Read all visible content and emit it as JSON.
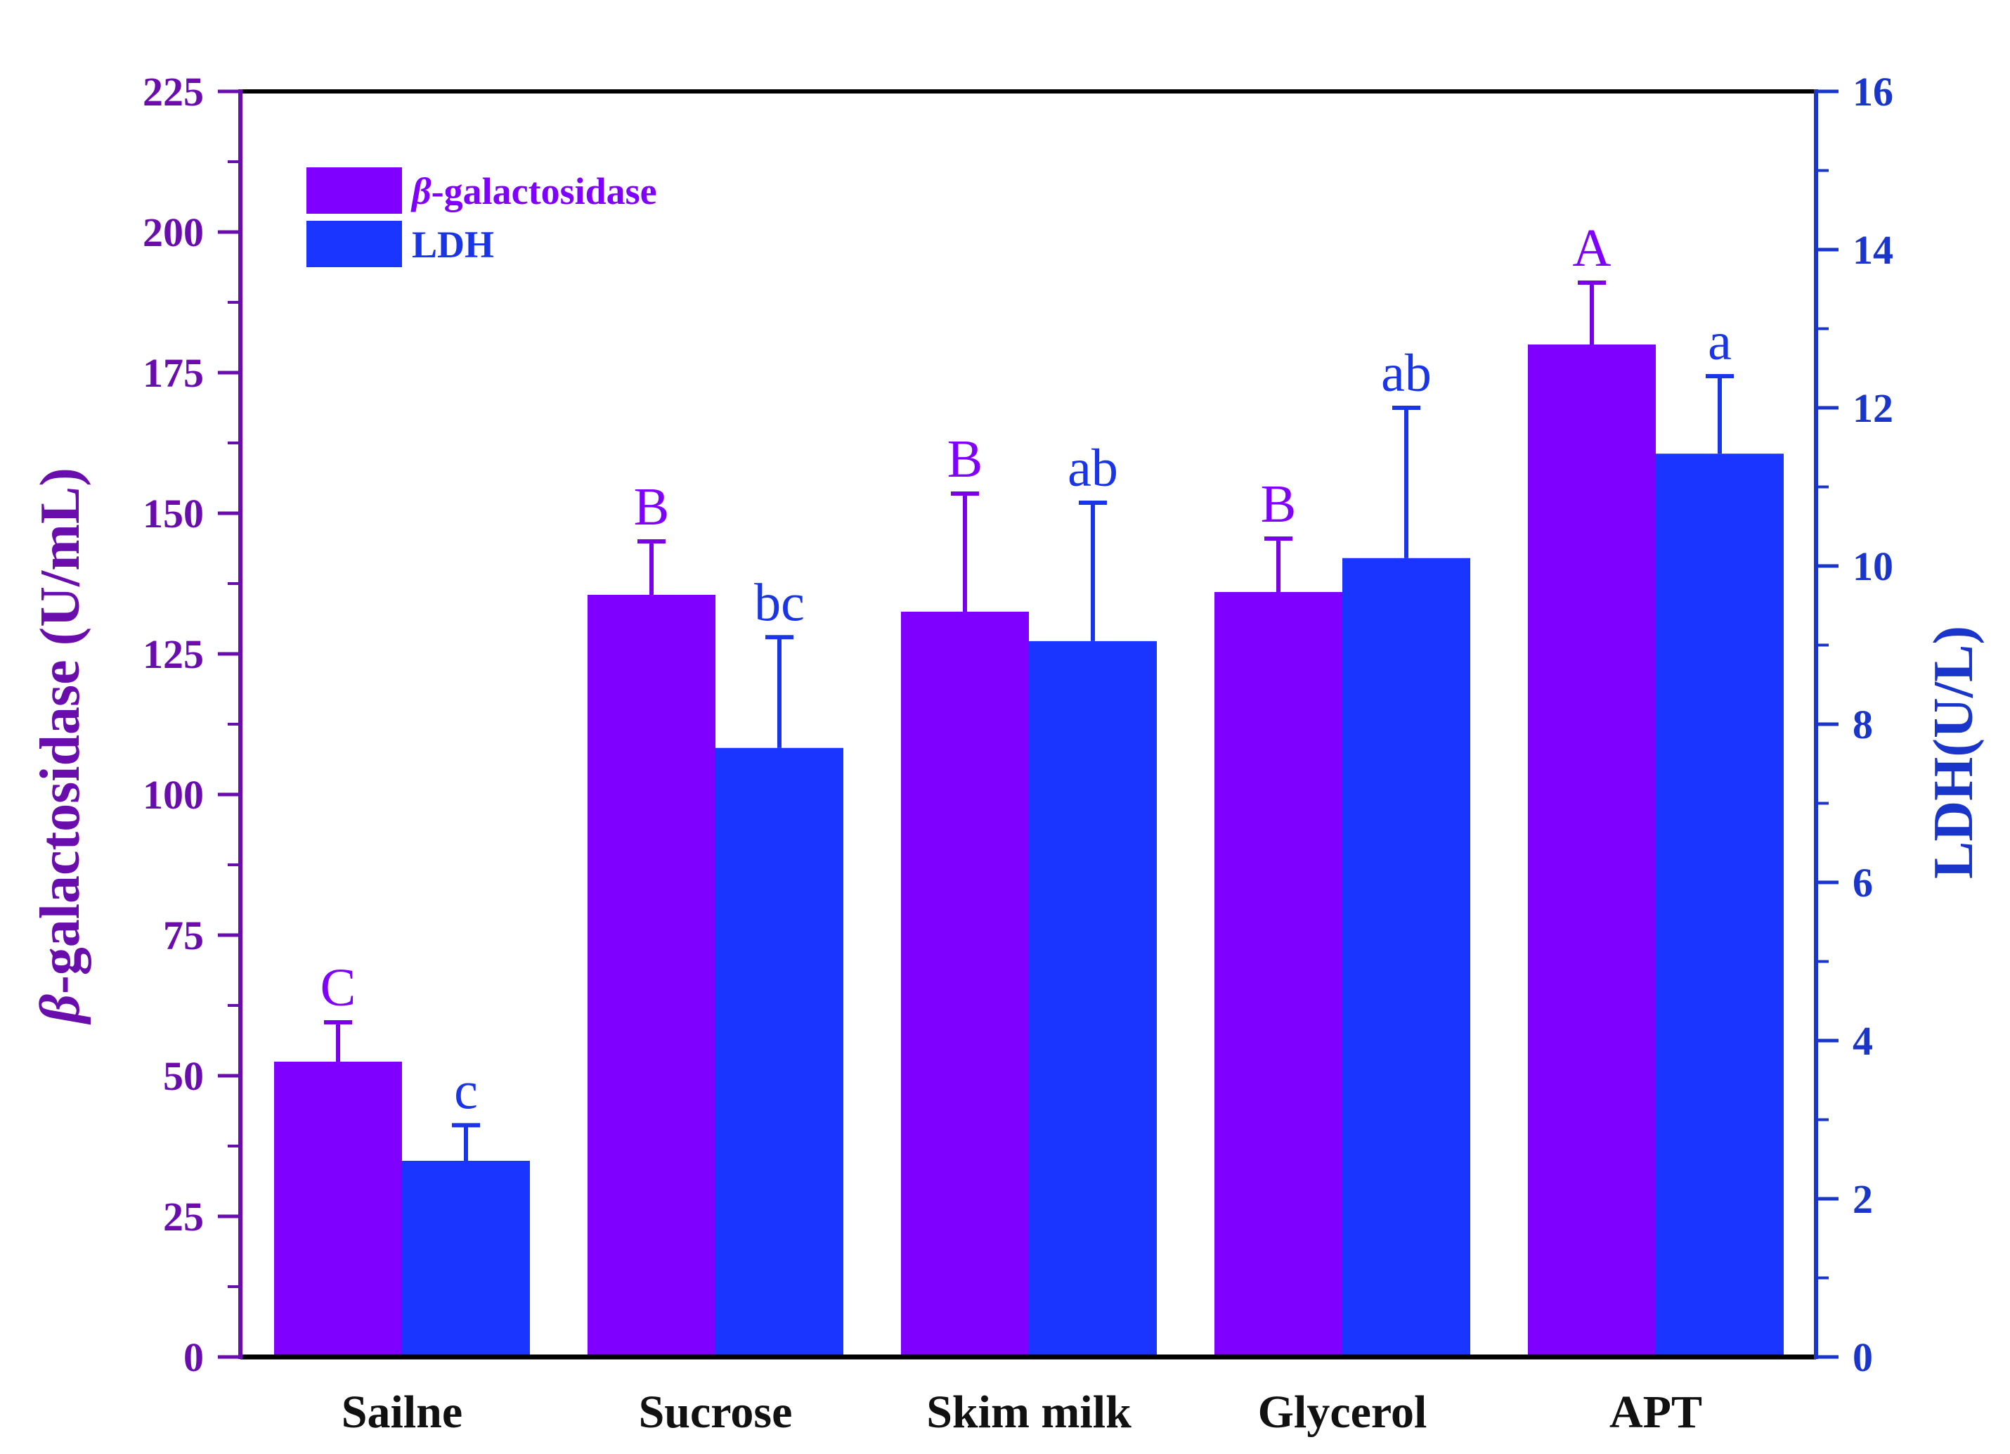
{
  "chart_data": {
    "type": "bar",
    "categories": [
      "Sailne",
      "Sucrose",
      "Skim milk",
      "Glycerol",
      "APT"
    ],
    "series": [
      {
        "name": "β-galactosidase",
        "name_prefix": "β",
        "name_suffix": "-galactosidase",
        "axis": "left",
        "color": "#8000ff",
        "values": [
          52.5,
          135.5,
          132.5,
          136,
          180
        ],
        "errors": [
          7,
          9.5,
          21,
          9.5,
          11
        ],
        "letters": [
          "C",
          "B",
          "B",
          "B",
          "A"
        ]
      },
      {
        "name": "LDH",
        "axis": "right",
        "color": "#1a35ff",
        "values": [
          2.48,
          7.7,
          9.05,
          10.1,
          11.42
        ],
        "errors": [
          0.45,
          1.4,
          1.75,
          1.9,
          0.98
        ],
        "letters": [
          "c",
          "bc",
          "ab",
          "ab",
          "a"
        ]
      }
    ],
    "y_left": {
      "label_prefix": "β",
      "label_suffix": "-galactosidase (U/mL)",
      "ylim": [
        0,
        225
      ],
      "ticks": [
        0,
        25,
        50,
        75,
        100,
        125,
        150,
        175,
        200,
        225
      ],
      "color": "#6a0dad"
    },
    "y_right": {
      "label": "LDH(U/L)",
      "ylim": [
        0,
        16
      ],
      "ticks": [
        0,
        2,
        4,
        6,
        8,
        10,
        12,
        14,
        16
      ],
      "color": "#1a35c9"
    },
    "legend": {
      "position": "top-left"
    },
    "grid": false
  }
}
